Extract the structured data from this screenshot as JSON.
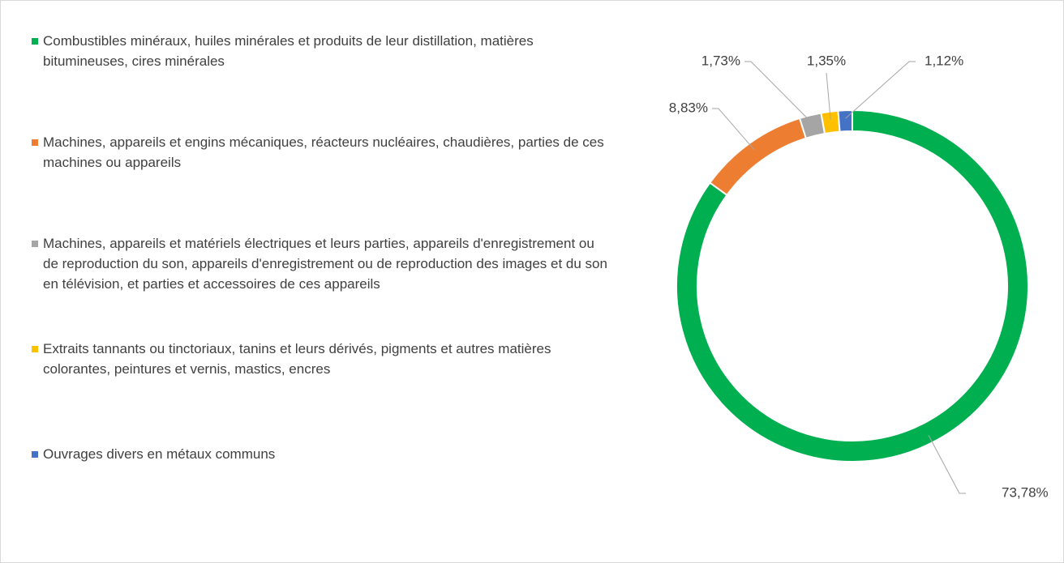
{
  "chart_data": {
    "type": "donut",
    "categories": [
      "Combustibles minéraux, huiles minérales et produits de leur distillation, matières bitumineuses, cires minérales",
      "Machines, appareils et engins mécaniques, réacteurs nucléaires, chaudières, parties de ces machines ou appareils",
      "Machines, appareils et matériels électriques et leurs parties, appareils d'enregistrement ou de reproduction du son, appareils d'enregistrement ou de reproduction des images et du son en télévision, et parties et accessoires de ces appareils",
      "Extraits tannants ou tinctoriaux, tanins et leurs dérivés, pigments et autres matières colorantes, peintures et vernis, mastics, encres",
      "Ouvrages divers en métaux communs"
    ],
    "values": [
      73.78,
      8.83,
      1.73,
      1.35,
      1.12
    ],
    "value_labels": [
      "73,78%",
      "8,83%",
      "1,73%",
      "1,35%",
      "1,12%"
    ],
    "colors": [
      "#00b050",
      "#ed7d31",
      "#a5a5a5",
      "#ffc000",
      "#4472c4"
    ],
    "legend": "left"
  }
}
